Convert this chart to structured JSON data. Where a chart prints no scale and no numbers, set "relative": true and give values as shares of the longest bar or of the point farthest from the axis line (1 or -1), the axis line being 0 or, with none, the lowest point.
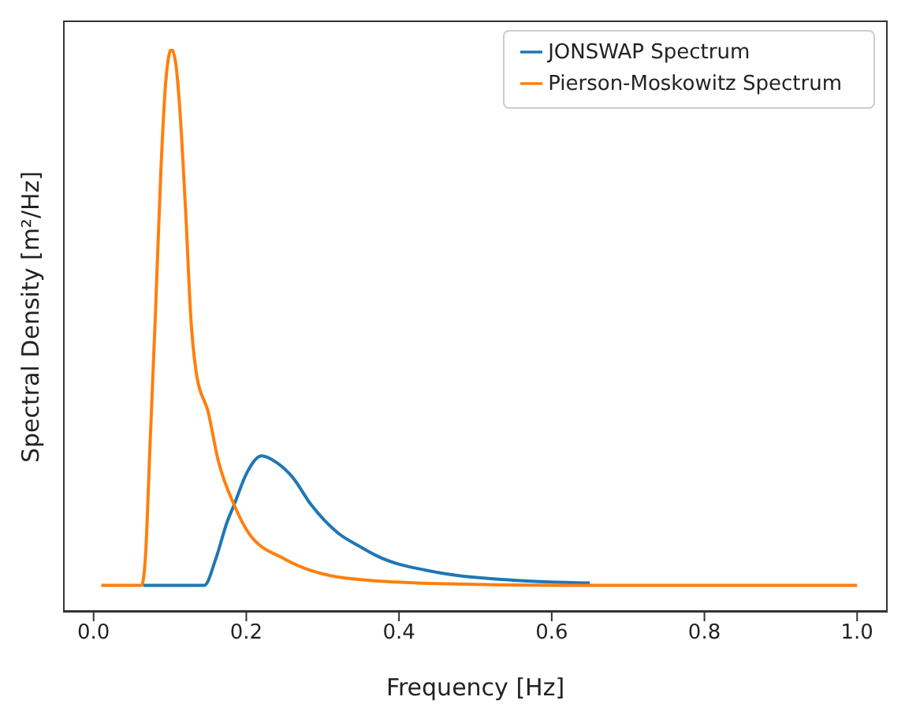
{
  "chart_data": {
    "type": "line",
    "relative": true,
    "xlabel": "Frequency [Hz]",
    "ylabel": "Spectral Density [m²/Hz]",
    "xlim": [
      -0.04,
      1.04
    ],
    "xticks": [
      {
        "value": 0,
        "label": "0.0"
      },
      0.2,
      0.4,
      0.6,
      0.8,
      {
        "value": 1,
        "label": "1.0"
      }
    ],
    "legend": "top right",
    "grid": false,
    "series": [
      {
        "name": "JONSWAP Spectrum",
        "color": "#1f77b4",
        "x": [
          0.065,
          0.145,
          0.16,
          0.175,
          0.184,
          0.2,
          0.22,
          0.24,
          0.26,
          0.285,
          0.32,
          0.35,
          0.37,
          0.45,
          0.55,
          0.65
        ],
        "values": [
          0.047,
          0.047,
          0.094,
          0.16,
          0.19,
          0.245,
          0.277,
          0.265,
          0.24,
          0.19,
          0.14,
          0.115,
          0.1,
          0.07,
          0.056,
          0.051
        ]
      },
      {
        "name": "Pierson-Moskowitz Spectrum",
        "color": "#ff7f0e",
        "x": [
          0.01,
          0.063,
          0.068,
          0.074,
          0.081,
          0.088,
          0.095,
          0.102,
          0.108,
          0.115,
          0.121,
          0.127,
          0.135,
          0.15,
          0.163,
          0.184,
          0.204,
          0.25,
          0.33,
          0.45,
          0.6,
          1.0
        ],
        "values": [
          0.047,
          0.047,
          0.1,
          0.3,
          0.53,
          0.78,
          0.95,
          1.0,
          0.97,
          0.85,
          0.7,
          0.53,
          0.42,
          0.355,
          0.27,
          0.19,
          0.138,
          0.094,
          0.06,
          0.05,
          0.047,
          0.047
        ]
      }
    ]
  }
}
